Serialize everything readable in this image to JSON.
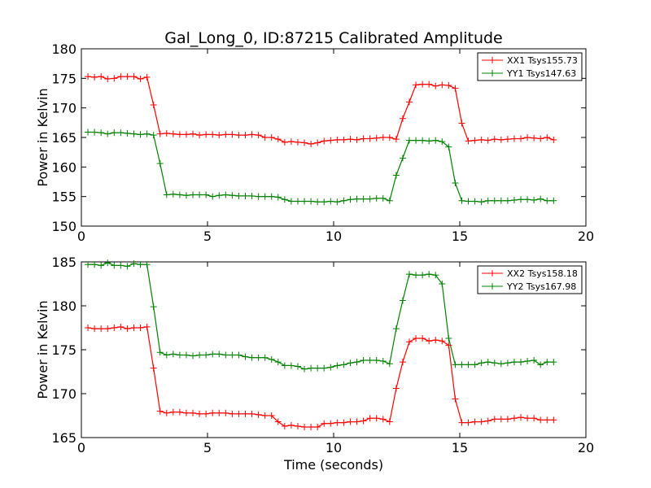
{
  "chart_data": [
    {
      "type": "line",
      "title": "Gal_Long_0, ID:87215 Calibrated Amplitude",
      "xlabel": "",
      "ylabel": "Power in Kelvin",
      "xlim": [
        0,
        20
      ],
      "ylim": [
        150,
        180
      ],
      "xticks": [
        "0",
        "5",
        "10",
        "15",
        "20"
      ],
      "yticks": [
        "150",
        "155",
        "160",
        "165",
        "170",
        "175",
        "180"
      ],
      "grid": false,
      "legend": "top-right",
      "x": [
        0.26,
        0.52,
        0.78,
        1.04,
        1.3,
        1.56,
        1.82,
        2.08,
        2.34,
        2.6,
        2.86,
        3.12,
        3.38,
        3.64,
        3.9,
        4.16,
        4.42,
        4.68,
        4.94,
        5.2,
        5.46,
        5.72,
        5.98,
        6.24,
        6.5,
        6.76,
        7.02,
        7.28,
        7.54,
        7.8,
        8.06,
        8.32,
        8.58,
        8.84,
        9.1,
        9.36,
        9.62,
        9.88,
        10.14,
        10.4,
        10.66,
        10.92,
        11.18,
        11.44,
        11.7,
        11.96,
        12.22,
        12.48,
        12.74,
        13.0,
        13.26,
        13.52,
        13.78,
        14.04,
        14.3,
        14.56,
        14.82,
        15.08,
        15.34,
        15.6,
        15.86,
        16.12,
        16.38,
        16.64,
        16.9,
        17.16,
        17.42,
        17.68,
        17.94,
        18.2,
        18.46,
        18.72
      ],
      "series": [
        {
          "name": "XX1 Tsys155.73",
          "color": "#ff0000",
          "values": [
            175.3,
            175.2,
            175.3,
            174.9,
            175.0,
            175.3,
            175.3,
            175.3,
            174.9,
            175.2,
            170.5,
            165.6,
            165.7,
            165.6,
            165.5,
            165.5,
            165.6,
            165.4,
            165.5,
            165.5,
            165.4,
            165.5,
            165.5,
            165.4,
            165.4,
            165.5,
            165.4,
            165.0,
            165.0,
            164.7,
            164.2,
            164.3,
            164.2,
            164.1,
            163.9,
            164.1,
            164.4,
            164.5,
            164.6,
            164.6,
            164.7,
            164.6,
            164.8,
            164.8,
            164.9,
            165.0,
            165.0,
            164.7,
            168.2,
            171.0,
            173.9,
            174.0,
            174.0,
            173.7,
            173.9,
            173.8,
            173.3,
            167.4,
            164.4,
            164.5,
            164.6,
            164.5,
            164.7,
            164.6,
            164.7,
            164.8,
            164.8,
            165.0,
            164.9,
            164.8,
            165.0,
            164.6
          ]
        },
        {
          "name": "YY1 Tsys147.63",
          "color": "#008000",
          "values": [
            165.9,
            165.9,
            165.8,
            165.6,
            165.8,
            165.8,
            165.7,
            165.6,
            165.5,
            165.6,
            165.4,
            160.6,
            155.3,
            155.4,
            155.3,
            155.2,
            155.3,
            155.3,
            155.3,
            155.0,
            155.2,
            155.3,
            155.2,
            155.1,
            155.1,
            155.1,
            155.0,
            155.0,
            155.0,
            154.9,
            154.5,
            154.2,
            154.2,
            154.2,
            154.2,
            154.1,
            154.1,
            154.2,
            154.1,
            154.3,
            154.5,
            154.6,
            154.6,
            154.6,
            154.7,
            154.7,
            154.3,
            158.6,
            161.5,
            164.5,
            164.5,
            164.5,
            164.4,
            164.5,
            164.3,
            163.4,
            157.3,
            154.3,
            154.2,
            154.2,
            154.1,
            154.3,
            154.3,
            154.3,
            154.3,
            154.4,
            154.5,
            154.5,
            154.4,
            154.6,
            154.3,
            154.3
          ]
        }
      ]
    },
    {
      "type": "line",
      "title": "",
      "xlabel": "Time (seconds)",
      "ylabel": "Power in Kelvin",
      "xlim": [
        0,
        20
      ],
      "ylim": [
        165,
        185
      ],
      "xticks": [
        "0",
        "5",
        "10",
        "15",
        "20"
      ],
      "yticks": [
        "165",
        "170",
        "175",
        "180",
        "185"
      ],
      "grid": false,
      "legend": "top-right",
      "x": [
        0.26,
        0.52,
        0.78,
        1.04,
        1.3,
        1.56,
        1.82,
        2.08,
        2.34,
        2.6,
        2.86,
        3.12,
        3.38,
        3.64,
        3.9,
        4.16,
        4.42,
        4.68,
        4.94,
        5.2,
        5.46,
        5.72,
        5.98,
        6.24,
        6.5,
        6.76,
        7.02,
        7.28,
        7.54,
        7.8,
        8.06,
        8.32,
        8.58,
        8.84,
        9.1,
        9.36,
        9.62,
        9.88,
        10.14,
        10.4,
        10.66,
        10.92,
        11.18,
        11.44,
        11.7,
        11.96,
        12.22,
        12.48,
        12.74,
        13.0,
        13.26,
        13.52,
        13.78,
        14.04,
        14.3,
        14.56,
        14.82,
        15.08,
        15.34,
        15.6,
        15.86,
        16.12,
        16.38,
        16.64,
        16.9,
        17.16,
        17.42,
        17.68,
        17.94,
        18.2,
        18.46,
        18.72
      ],
      "series": [
        {
          "name": "XX2 Tsys158.18",
          "color": "#ff0000",
          "values": [
            177.5,
            177.4,
            177.4,
            177.4,
            177.5,
            177.6,
            177.4,
            177.5,
            177.5,
            177.6,
            172.9,
            168.0,
            167.8,
            167.9,
            167.9,
            167.8,
            167.8,
            167.7,
            167.7,
            167.8,
            167.8,
            167.8,
            167.7,
            167.7,
            167.7,
            167.7,
            167.6,
            167.5,
            167.5,
            166.8,
            166.3,
            166.4,
            166.3,
            166.2,
            166.2,
            166.2,
            166.6,
            166.6,
            166.7,
            166.7,
            166.8,
            166.8,
            166.9,
            167.2,
            167.2,
            167.1,
            166.8,
            170.6,
            173.6,
            175.9,
            176.3,
            176.3,
            176.0,
            176.1,
            176.0,
            175.5,
            169.4,
            166.7,
            166.7,
            166.8,
            166.8,
            166.9,
            167.1,
            167.1,
            167.1,
            167.2,
            167.3,
            167.2,
            167.2,
            167.0,
            167.0,
            167.0
          ]
        },
        {
          "name": "YY2 Tsys167.98",
          "color": "#008000",
          "values": [
            184.7,
            184.7,
            184.6,
            184.9,
            184.6,
            184.6,
            184.5,
            184.8,
            184.7,
            184.7,
            179.9,
            174.7,
            174.4,
            174.5,
            174.4,
            174.4,
            174.3,
            174.4,
            174.4,
            174.5,
            174.5,
            174.4,
            174.4,
            174.4,
            174.2,
            174.1,
            174.1,
            174.1,
            173.9,
            173.6,
            173.2,
            173.2,
            173.1,
            172.8,
            172.9,
            172.9,
            172.9,
            173.0,
            173.2,
            173.3,
            173.5,
            173.6,
            173.8,
            173.8,
            173.8,
            173.7,
            173.4,
            177.4,
            180.6,
            183.6,
            183.5,
            183.5,
            183.6,
            183.5,
            182.5,
            176.3,
            173.3,
            173.3,
            173.3,
            173.3,
            173.5,
            173.6,
            173.5,
            173.4,
            173.5,
            173.6,
            173.6,
            173.7,
            173.8,
            173.3,
            173.6,
            173.6
          ]
        }
      ]
    }
  ]
}
